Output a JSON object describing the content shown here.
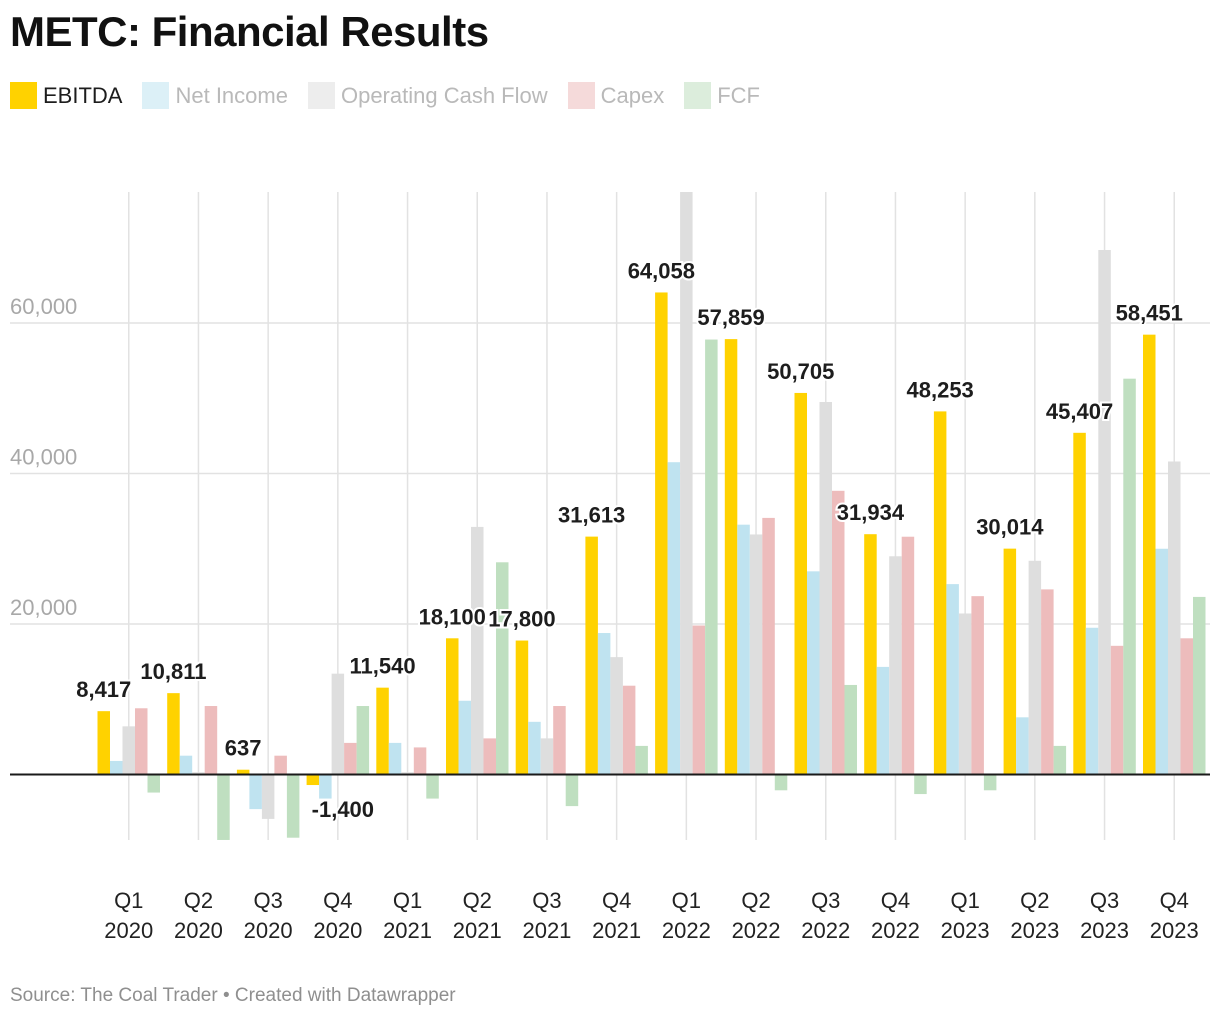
{
  "title": "METC: Financial Results",
  "footer": {
    "source": "Source: The Coal Trader",
    "separator": "•",
    "credit": "Created with Datawrapper"
  },
  "colors": {
    "EBITDA": "#ffd200",
    "Net Income": "#bfe3f0",
    "Operating Cash Flow": "#dedede",
    "Capex": "#edbcbc",
    "FCF": "#bfdfc0",
    "grid": "#e2e2e2",
    "baseline": "#1a1a1a",
    "tick_label": "#a8a8a8"
  },
  "legend": [
    {
      "label": "EBITDA",
      "active": true
    },
    {
      "label": "Net Income",
      "active": false
    },
    {
      "label": "Operating Cash Flow",
      "active": false
    },
    {
      "label": "Capex",
      "active": false
    },
    {
      "label": "FCF",
      "active": false
    }
  ],
  "chart_data": {
    "type": "bar",
    "title": "METC: Financial Results",
    "categories": [
      [
        "Q1",
        "2020"
      ],
      [
        "Q2",
        "2020"
      ],
      [
        "Q3",
        "2020"
      ],
      [
        "Q4",
        "2020"
      ],
      [
        "Q1",
        "2021"
      ],
      [
        "Q2",
        "2021"
      ],
      [
        "Q3",
        "2021"
      ],
      [
        "Q4",
        "2021"
      ],
      [
        "Q1",
        "2022"
      ],
      [
        "Q2",
        "2022"
      ],
      [
        "Q3",
        "2022"
      ],
      [
        "Q4",
        "2022"
      ],
      [
        "Q1",
        "2023"
      ],
      [
        "Q2",
        "2023"
      ],
      [
        "Q3",
        "2023"
      ],
      [
        "Q4",
        "2023"
      ]
    ],
    "series": [
      {
        "name": "EBITDA",
        "values": [
          8417,
          10811,
          637,
          -1400,
          11540,
          18100,
          17800,
          31613,
          64058,
          57859,
          50705,
          31934,
          48253,
          30014,
          45407,
          58451
        ]
      },
      {
        "name": "Net Income",
        "values": [
          1800,
          2500,
          -4600,
          -3200,
          4200,
          9800,
          7000,
          18800,
          41500,
          33200,
          27000,
          14300,
          25300,
          7600,
          19500,
          30000
        ]
      },
      {
        "name": "Operating Cash Flow",
        "values": [
          6400,
          300,
          -5900,
          13400,
          300,
          32900,
          4800,
          15600,
          78000,
          31900,
          49500,
          29000,
          21400,
          28400,
          69700,
          41600
        ]
      },
      {
        "name": "Capex",
        "values": [
          8800,
          9100,
          2500,
          4200,
          3600,
          4800,
          9100,
          11800,
          19800,
          34100,
          37700,
          31600,
          23700,
          24600,
          17100,
          18100
        ]
      },
      {
        "name": "FCF",
        "values": [
          -2400,
          -8700,
          -8400,
          9100,
          -3200,
          28200,
          -4200,
          3800,
          57800,
          -2100,
          11900,
          -2600,
          -2100,
          3800,
          52600,
          23600
        ]
      }
    ],
    "labeled_series": "EBITDA",
    "data_labels": [
      "8,417",
      "10,811",
      "637",
      "-1,400",
      "11,540",
      "18,100",
      "17,800",
      "31,613",
      "64,058",
      "57,859",
      "50,705",
      "31,934",
      "48,253",
      "30,014",
      "45,407",
      "58,451"
    ],
    "y_ticks": [
      20000,
      40000,
      60000
    ],
    "y_tick_labels": [
      "20,000",
      "40,000",
      "60,000"
    ],
    "ylim": [
      -8700,
      77500
    ],
    "grid": true,
    "legend_position": "top-left"
  }
}
